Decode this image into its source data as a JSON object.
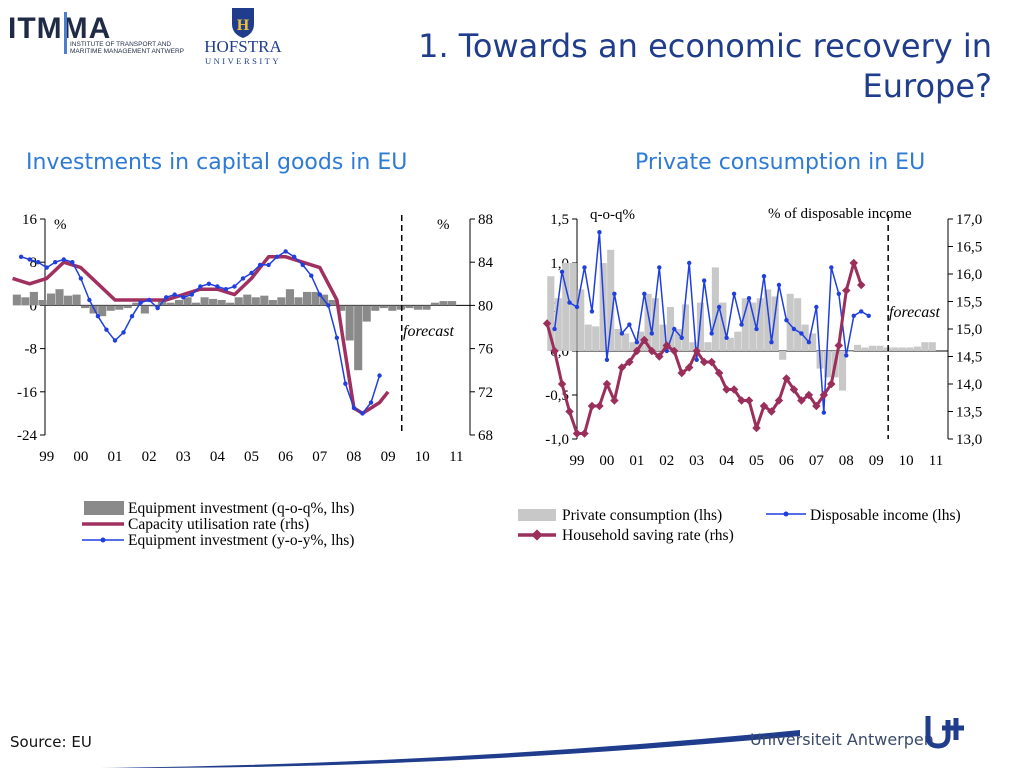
{
  "slide": {
    "title": "1. Towards an economic recovery in Europe?",
    "source": "Source: EU",
    "logos": {
      "itmma_name": "ITMMA",
      "itmma_sub1": "INSTITUTE OF TRANSPORT AND",
      "itmma_sub2": "MARITIME MANAGEMENT ANTWERP",
      "hofstra_name": "HOFSTRA",
      "hofstra_sub": "UNIVERSITY",
      "hofstra_seal_letter": "H",
      "university": "Universiteit Antwerpen"
    }
  },
  "colors": {
    "title": "#1f3d8c",
    "panel_title": "#2e7bd6",
    "bars_left": "#8a8a8a",
    "bars_right": "#c8c8c8",
    "capacity": "#a03060",
    "saving": "#9b2f5c",
    "line_blue": "#1f3fe0"
  },
  "chart_data": [
    {
      "type": "bar",
      "title": "Investments in capital goods in EU",
      "left_unit": "%",
      "right_unit": "%",
      "x_tick_labels": [
        "99",
        "00",
        "01",
        "02",
        "03",
        "04",
        "05",
        "06",
        "07",
        "08",
        "09",
        "10",
        "11"
      ],
      "y_left_ticks": [
        "16",
        "8",
        "0",
        "-8",
        "-16",
        "-24"
      ],
      "y_right_ticks": [
        "88",
        "84",
        "80",
        "76",
        "72",
        "68"
      ],
      "ylim_left": [
        -24,
        16
      ],
      "ylim_right": [
        68,
        88
      ],
      "annotation": "forecast",
      "forecast_from": 10.4,
      "legend": [
        "Equipment investment (q-o-q%, lhs)",
        "Capacity utilisation rate (rhs)",
        "Equipment investment (y-o-y%, lhs)"
      ],
      "series": [
        {
          "name": "Equipment investment (q-o-q%, lhs)",
          "kind": "bar",
          "axis": "left",
          "x": [
            -0.875,
            -0.625,
            -0.375,
            -0.125,
            0.125,
            0.375,
            0.625,
            0.875,
            1.125,
            1.375,
            1.625,
            1.875,
            2.125,
            2.375,
            2.625,
            2.875,
            3.125,
            3.375,
            3.625,
            3.875,
            4.125,
            4.375,
            4.625,
            4.875,
            5.125,
            5.375,
            5.625,
            5.875,
            6.125,
            6.375,
            6.625,
            6.875,
            7.125,
            7.375,
            7.625,
            7.875,
            8.125,
            8.375,
            8.625,
            8.875,
            9.125,
            9.375,
            9.625,
            9.875,
            10.125,
            10.375,
            10.625,
            10.875,
            11.125,
            11.375,
            11.625,
            11.875
          ],
          "values": [
            2.0,
            1.5,
            2.5,
            1.0,
            2.2,
            3.0,
            1.8,
            2.0,
            -0.5,
            -1.5,
            -2.0,
            -1.0,
            -0.8,
            -0.5,
            0.5,
            -1.5,
            0.0,
            0.8,
            0.5,
            1.0,
            1.5,
            0.5,
            1.5,
            1.2,
            1.0,
            0.5,
            1.5,
            2.0,
            1.5,
            1.8,
            1.0,
            1.5,
            3.0,
            1.5,
            2.5,
            2.5,
            2.0,
            1.0,
            -1.0,
            -6.5,
            -12.0,
            -3.0,
            -1.0,
            -0.5,
            -1.0,
            -0.8,
            -0.5,
            -0.8,
            -0.8,
            0.5,
            0.8,
            0.8
          ]
        },
        {
          "name": "Capacity utilisation rate (rhs)",
          "kind": "line",
          "axis": "right",
          "x": [
            -1.0,
            -0.5,
            0.0,
            0.5,
            1.0,
            1.5,
            2.0,
            2.5,
            3.0,
            3.5,
            4.0,
            4.5,
            5.0,
            5.5,
            6.0,
            6.5,
            7.0,
            7.5,
            8.0,
            8.5,
            9.0,
            9.25,
            9.5,
            9.75,
            10.0
          ],
          "values": [
            82.5,
            82.0,
            82.5,
            84.0,
            83.5,
            82.0,
            80.5,
            80.5,
            80.5,
            80.5,
            81.0,
            81.5,
            81.5,
            81.0,
            82.5,
            84.5,
            84.5,
            84.0,
            83.5,
            80.5,
            70.5,
            70.0,
            70.5,
            71.0,
            72.0
          ]
        },
        {
          "name": "Equipment investment (y-o-y%, lhs)",
          "kind": "line",
          "axis": "left",
          "x": [
            -0.75,
            -0.5,
            -0.25,
            0.0,
            0.25,
            0.5,
            0.75,
            1.0,
            1.25,
            1.5,
            1.75,
            2.0,
            2.25,
            2.5,
            2.75,
            3.0,
            3.25,
            3.5,
            3.75,
            4.0,
            4.25,
            4.5,
            4.75,
            5.0,
            5.25,
            5.5,
            5.75,
            6.0,
            6.25,
            6.5,
            6.75,
            7.0,
            7.25,
            7.5,
            7.75,
            8.0,
            8.25,
            8.5,
            8.75,
            9.0,
            9.25,
            9.5,
            9.75
          ],
          "values": [
            9.0,
            8.5,
            8.0,
            7.0,
            8.0,
            8.5,
            8.0,
            5.0,
            1.0,
            -2.0,
            -4.5,
            -6.5,
            -5.0,
            -2.0,
            0.5,
            1.0,
            -0.5,
            1.5,
            2.0,
            1.5,
            2.0,
            3.5,
            4.0,
            3.5,
            3.0,
            3.5,
            5.0,
            6.0,
            7.5,
            7.5,
            9.0,
            10.0,
            9.0,
            7.5,
            5.5,
            2.0,
            0.0,
            -6.0,
            -14.5,
            -19.0,
            -20.0,
            -18.0,
            -13.0
          ]
        }
      ]
    },
    {
      "type": "bar",
      "title": "Private consumption in EU",
      "left_unit": "q-o-q%",
      "right_unit": "% of disposable income",
      "x_tick_labels": [
        "99",
        "00",
        "01",
        "02",
        "03",
        "04",
        "05",
        "06",
        "07",
        "08",
        "09",
        "10",
        "11"
      ],
      "y_left_ticks": [
        "1,5",
        "1,0",
        "0,5",
        "0,0",
        "-0,5",
        "-1,0"
      ],
      "y_right_ticks": [
        "17,0",
        "16,5",
        "16,0",
        "15,5",
        "15,0",
        "14,5",
        "14,0",
        "13,5",
        "13,0"
      ],
      "ylim_left": [
        -1.0,
        1.5
      ],
      "ylim_right": [
        13.0,
        17.0
      ],
      "annotation": "forecast",
      "forecast_from": 10.4,
      "legend": [
        "Private consumption (lhs)",
        "Disposable income (lhs)",
        "Household saving rate (rhs)"
      ],
      "series": [
        {
          "name": "Private consumption (lhs)",
          "kind": "bar",
          "axis": "left",
          "x": [
            -0.875,
            -0.625,
            -0.375,
            -0.125,
            0.125,
            0.375,
            0.625,
            0.875,
            1.125,
            1.375,
            1.625,
            1.875,
            2.125,
            2.375,
            2.625,
            2.875,
            3.125,
            3.375,
            3.625,
            3.875,
            4.125,
            4.375,
            4.625,
            4.875,
            5.125,
            5.375,
            5.625,
            5.875,
            6.125,
            6.375,
            6.625,
            6.875,
            7.125,
            7.375,
            7.625,
            7.875,
            8.125,
            8.375,
            8.625,
            8.875,
            9.125,
            9.375,
            9.625,
            9.875,
            10.125,
            10.375,
            10.625,
            10.875,
            11.125,
            11.375,
            11.625,
            11.875
          ],
          "values": [
            0.85,
            0.6,
            1.0,
            1.0,
            0.7,
            0.3,
            0.28,
            1.0,
            1.15,
            0.25,
            0.2,
            0.1,
            0.22,
            0.65,
            0.6,
            0.3,
            0.5,
            0.25,
            0.53,
            0.1,
            0.55,
            0.1,
            0.95,
            0.55,
            0.15,
            0.22,
            0.6,
            0.55,
            0.6,
            0.7,
            0.62,
            -0.1,
            0.65,
            0.6,
            0.3,
            0.2,
            -0.2,
            -0.3,
            -0.3,
            -0.45,
            0.0,
            0.07,
            0.04,
            0.06,
            0.06,
            0.04,
            0.04,
            0.04,
            0.04,
            0.05,
            0.1,
            0.1
          ]
        },
        {
          "name": "Disposable income (lhs)",
          "kind": "line",
          "axis": "left",
          "x": [
            -0.75,
            -0.5,
            -0.25,
            0.0,
            0.25,
            0.5,
            0.75,
            1.0,
            1.25,
            1.5,
            1.75,
            2.0,
            2.25,
            2.5,
            2.75,
            3.0,
            3.25,
            3.5,
            3.75,
            4.0,
            4.25,
            4.5,
            4.75,
            5.0,
            5.25,
            5.5,
            5.75,
            6.0,
            6.25,
            6.5,
            6.75,
            7.0,
            7.25,
            7.5,
            7.75,
            8.0,
            8.25,
            8.5,
            8.75,
            9.0,
            9.25,
            9.5,
            9.75
          ],
          "values": [
            0.25,
            0.9,
            0.55,
            0.5,
            0.95,
            0.45,
            1.35,
            -0.1,
            0.65,
            0.2,
            0.3,
            0.1,
            0.65,
            0.2,
            0.95,
            0.0,
            0.25,
            0.15,
            1.0,
            -0.1,
            0.8,
            0.2,
            0.5,
            0.15,
            0.65,
            0.3,
            0.6,
            0.25,
            0.85,
            0.1,
            0.75,
            0.35,
            0.25,
            0.2,
            0.1,
            0.5,
            -0.7,
            0.95,
            0.65,
            -0.05,
            0.4,
            0.45,
            0.4
          ]
        },
        {
          "name": "Household saving rate (rhs)",
          "kind": "line",
          "axis": "right",
          "x": [
            -1.0,
            -0.75,
            -0.5,
            -0.25,
            0.0,
            0.25,
            0.5,
            0.75,
            1.0,
            1.25,
            1.5,
            1.75,
            2.0,
            2.25,
            2.5,
            2.75,
            3.0,
            3.25,
            3.5,
            3.75,
            4.0,
            4.25,
            4.5,
            4.75,
            5.0,
            5.25,
            5.5,
            5.75,
            6.0,
            6.25,
            6.5,
            6.75,
            7.0,
            7.25,
            7.5,
            7.75,
            8.0,
            8.25,
            8.5,
            8.75,
            9.0,
            9.25,
            9.5
          ],
          "values": [
            15.1,
            14.6,
            14.0,
            13.5,
            13.1,
            13.1,
            13.6,
            13.6,
            14.0,
            13.7,
            14.3,
            14.4,
            14.6,
            14.8,
            14.6,
            14.5,
            14.7,
            14.6,
            14.2,
            14.3,
            14.6,
            14.4,
            14.4,
            14.2,
            13.9,
            13.9,
            13.7,
            13.7,
            13.2,
            13.6,
            13.5,
            13.7,
            14.1,
            13.9,
            13.7,
            13.8,
            13.6,
            13.8,
            14.0,
            14.7,
            15.7,
            16.2,
            15.8
          ]
        }
      ]
    }
  ]
}
